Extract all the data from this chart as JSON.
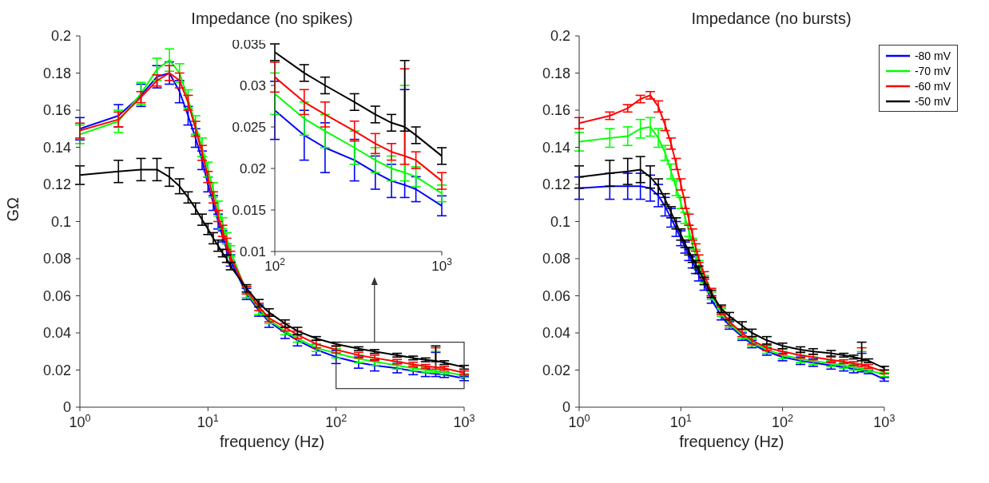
{
  "chart_data": [
    {
      "type": "line",
      "title": "Impedance (no spikes)",
      "xlabel": "frequency (Hz)",
      "ylabel": "GΩ",
      "log": "x",
      "marker": "none",
      "line_style": "solid",
      "xlim": [
        1,
        1000
      ],
      "xticks": [
        {
          "value": 1,
          "label": "10$^{0}$"
        },
        {
          "value": 10,
          "label": "10$^{1}$"
        },
        {
          "value": 100,
          "label": "10$^{2}$"
        },
        {
          "value": 1000,
          "label": "10$^{3}$"
        }
      ],
      "ylim": [
        0,
        0.2
      ],
      "yticks": [
        0,
        0.02,
        0.04,
        0.06,
        0.08,
        0.1,
        0.12,
        0.14,
        0.16,
        0.18,
        0.2
      ],
      "x": [
        1,
        2,
        3,
        4,
        5,
        6,
        7,
        8,
        9,
        10,
        11,
        12,
        13,
        14,
        15,
        20,
        25,
        30,
        40,
        50,
        70,
        100,
        150,
        200,
        300,
        400,
        500,
        600,
        700,
        1000
      ],
      "series": [
        {
          "color": "#0000ff",
          "values": [
            0.15,
            0.157,
            0.168,
            0.178,
            0.18,
            0.17,
            0.157,
            0.145,
            0.133,
            0.12,
            0.11,
            0.1,
            0.092,
            0.085,
            0.079,
            0.061,
            0.052,
            0.046,
            0.04,
            0.036,
            0.031,
            0.027,
            0.024,
            0.0225,
            0.021,
            0.0195,
            0.0185,
            0.018,
            0.0175,
            0.0155
          ],
          "errors": [
            0.006,
            0.006,
            0.006,
            0.006,
            0.006,
            0.006,
            0.005,
            0.005,
            0.005,
            0.004,
            0.004,
            0.004,
            0.003,
            0.003,
            0.003,
            0.003,
            0.003,
            0.003,
            0.003,
            0.003,
            0.003,
            0.0035,
            0.003,
            0.003,
            0.0025,
            0.002,
            0.002,
            [
              0.0165,
              0.0295
            ],
            0.0015,
            0.0012
          ]
        },
        {
          "color": "#00ff00",
          "values": [
            0.147,
            0.154,
            0.169,
            0.182,
            0.187,
            0.18,
            0.166,
            0.152,
            0.14,
            0.128,
            0.117,
            0.107,
            0.099,
            0.091,
            0.084,
            0.062,
            0.053,
            0.047,
            0.041,
            0.037,
            0.032,
            0.029,
            0.026,
            0.0245,
            0.0225,
            0.021,
            0.02,
            0.0195,
            0.019,
            0.017
          ],
          "errors": [
            0.005,
            0.006,
            0.006,
            0.006,
            0.006,
            0.005,
            0.005,
            0.005,
            0.005,
            0.004,
            0.004,
            0.004,
            0.003,
            0.003,
            0.003,
            0.003,
            0.003,
            0.002,
            0.002,
            0.002,
            0.002,
            0.0025,
            0.002,
            0.002,
            0.002,
            0.0015,
            0.0015,
            [
              0.0185,
              0.03
            ],
            0.0012,
            0.001
          ]
        },
        {
          "color": "#ff0000",
          "values": [
            0.149,
            0.155,
            0.167,
            0.176,
            0.18,
            0.176,
            0.164,
            0.15,
            0.137,
            0.124,
            0.113,
            0.103,
            0.095,
            0.088,
            0.081,
            0.063,
            0.054,
            0.048,
            0.043,
            0.039,
            0.034,
            0.031,
            0.028,
            0.0265,
            0.0245,
            0.023,
            0.022,
            0.0215,
            0.021,
            0.0185
          ],
          "errors": [
            0.004,
            0.004,
            0.003,
            0.003,
            0.004,
            0.004,
            0.004,
            0.004,
            0.004,
            0.003,
            0.003,
            0.003,
            0.003,
            0.003,
            0.003,
            0.002,
            0.002,
            0.002,
            0.002,
            0.002,
            0.002,
            0.0018,
            0.0015,
            0.0015,
            0.0012,
            0.0012,
            0.001,
            [
              0.0205,
              0.032
            ],
            0.001,
            0.001
          ]
        },
        {
          "color": "#000000",
          "values": [
            0.125,
            0.127,
            0.128,
            0.128,
            0.124,
            0.119,
            0.113,
            0.107,
            0.101,
            0.096,
            0.091,
            0.087,
            0.083,
            0.08,
            0.076,
            0.064,
            0.056,
            0.051,
            0.045,
            0.041,
            0.037,
            0.034,
            0.0315,
            0.03,
            0.028,
            0.0265,
            0.0255,
            0.025,
            0.024,
            0.0215
          ],
          "errors": [
            0.005,
            0.006,
            0.006,
            0.006,
            0.005,
            0.004,
            0.003,
            0.003,
            0.003,
            0.003,
            0.003,
            0.003,
            0.002,
            0.002,
            0.002,
            0.002,
            0.002,
            0.002,
            0.002,
            0.002,
            0.001,
            0.001,
            0.001,
            0.001,
            0.001,
            0.001,
            0.001,
            [
              0.0245,
              0.033
            ],
            0.001,
            0.001
          ]
        }
      ]
    },
    {
      "type": "line",
      "log": "x",
      "marker": "none",
      "line_style": "solid",
      "xlim": [
        100,
        1000
      ],
      "xticks": [
        {
          "value": 100,
          "label": "10$^{2}$"
        },
        {
          "value": 1000,
          "label": "10$^{3}$"
        }
      ],
      "ylim": [
        0.01,
        0.035
      ],
      "yticks": [
        0.01,
        0.015,
        0.02,
        0.025,
        0.03,
        0.035
      ],
      "x": [
        100,
        150,
        200,
        300,
        400,
        500,
        600,
        700,
        1000
      ],
      "series": [
        {
          "color": "#0000ff",
          "values": [
            0.027,
            0.024,
            0.0225,
            0.021,
            0.0195,
            0.0185,
            0.018,
            0.0175,
            0.0155
          ],
          "errors": [
            0.0035,
            0.003,
            0.003,
            0.0025,
            0.002,
            0.002,
            [
              0.0165,
              0.0295
            ],
            0.0015,
            0.0012
          ]
        },
        {
          "color": "#00ff00",
          "values": [
            0.029,
            0.026,
            0.0245,
            0.0225,
            0.021,
            0.02,
            0.0195,
            0.019,
            0.017
          ],
          "errors": [
            0.0025,
            0.002,
            0.002,
            0.002,
            0.0015,
            0.0015,
            [
              0.0185,
              0.03
            ],
            0.0012,
            0.001
          ]
        },
        {
          "color": "#ff0000",
          "values": [
            0.031,
            0.028,
            0.0265,
            0.0245,
            0.023,
            0.022,
            0.0215,
            0.021,
            0.0185
          ],
          "errors": [
            0.0018,
            0.0015,
            0.0015,
            0.0012,
            0.0012,
            0.001,
            [
              0.0205,
              0.032
            ],
            0.001,
            0.001
          ]
        },
        {
          "color": "#000000",
          "values": [
            0.034,
            0.0315,
            0.03,
            0.028,
            0.0265,
            0.0255,
            0.025,
            0.024,
            0.0215
          ],
          "errors": [
            0.001,
            0.001,
            0.001,
            0.001,
            0.001,
            0.001,
            [
              0.0245,
              0.033
            ],
            0.001,
            0.001
          ]
        }
      ]
    },
    {
      "type": "line",
      "title": "Impedance (no bursts)",
      "xlabel": "frequency (Hz)",
      "log": "x",
      "marker": "none",
      "line_style": "solid",
      "legend": "top right",
      "xlim": [
        1,
        1000
      ],
      "xticks": [
        {
          "value": 1,
          "label": "10$^{0}$"
        },
        {
          "value": 10,
          "label": "10$^{1}$"
        },
        {
          "value": 100,
          "label": "10$^{2}$"
        },
        {
          "value": 1000,
          "label": "10$^{3}$"
        }
      ],
      "ylim": [
        0,
        0.2
      ],
      "yticks": [
        0,
        0.02,
        0.04,
        0.06,
        0.08,
        0.1,
        0.12,
        0.14,
        0.16,
        0.18,
        0.2
      ],
      "x": [
        1,
        2,
        3,
        4,
        5,
        6,
        7,
        8,
        9,
        10,
        11,
        12,
        13,
        14,
        15,
        17,
        20,
        25,
        30,
        40,
        50,
        70,
        100,
        150,
        200,
        300,
        400,
        500,
        600,
        700,
        1000
      ],
      "series": [
        {
          "name": "-80 mV",
          "color": "#0000ff",
          "values": [
            0.118,
            0.119,
            0.119,
            0.119,
            0.118,
            0.114,
            0.108,
            0.102,
            0.096,
            0.091,
            0.086,
            0.082,
            0.078,
            0.075,
            0.071,
            0.066,
            0.058,
            0.049,
            0.044,
            0.038,
            0.034,
            0.03,
            0.027,
            0.025,
            0.024,
            0.0225,
            0.0215,
            0.0205,
            0.02,
            0.019,
            0.015
          ],
          "errors": [
            0.006,
            0.007,
            0.007,
            0.007,
            0.007,
            0.006,
            0.005,
            0.005,
            0.004,
            0.004,
            0.003,
            0.003,
            0.003,
            0.003,
            0.003,
            0.003,
            0.002,
            0.002,
            0.002,
            0.002,
            0.002,
            0.002,
            0.002,
            0.002,
            0.002,
            0.002,
            0.002,
            0.002,
            [
              0.019,
              0.029
            ],
            0.001,
            0.001
          ]
        },
        {
          "name": "-70 mV",
          "color": "#00ff00",
          "values": [
            0.143,
            0.145,
            0.146,
            0.15,
            0.151,
            0.145,
            0.137,
            0.127,
            0.118,
            0.11,
            0.102,
            0.095,
            0.088,
            0.082,
            0.077,
            0.069,
            0.06,
            0.051,
            0.045,
            0.039,
            0.035,
            0.031,
            0.028,
            0.026,
            0.025,
            0.0235,
            0.0225,
            0.0215,
            0.021,
            0.02,
            0.0175
          ],
          "errors": [
            0.005,
            0.005,
            0.005,
            0.005,
            0.005,
            0.005,
            0.004,
            0.004,
            0.004,
            0.003,
            0.003,
            0.003,
            0.003,
            0.003,
            0.002,
            0.002,
            0.002,
            0.002,
            0.002,
            0.002,
            0.002,
            0.002,
            0.002,
            0.002,
            0.002,
            0.0015,
            0.0015,
            0.0015,
            [
              0.02,
              0.03
            ],
            0.001,
            0.001
          ]
        },
        {
          "name": "-60 mV",
          "color": "#ff0000",
          "values": [
            0.153,
            0.157,
            0.161,
            0.166,
            0.168,
            0.162,
            0.152,
            0.142,
            0.131,
            0.12,
            0.11,
            0.101,
            0.093,
            0.086,
            0.08,
            0.071,
            0.062,
            0.052,
            0.046,
            0.04,
            0.036,
            0.032,
            0.03,
            0.028,
            0.027,
            0.0255,
            0.0245,
            0.0235,
            0.023,
            0.022,
            0.019
          ],
          "errors": [
            0.003,
            0.002,
            0.002,
            0.002,
            0.002,
            0.003,
            0.003,
            0.003,
            0.003,
            0.003,
            0.003,
            0.003,
            0.003,
            0.002,
            0.002,
            0.002,
            0.002,
            0.002,
            0.002,
            0.002,
            0.002,
            0.0015,
            0.0015,
            0.0015,
            0.0015,
            0.0015,
            0.001,
            0.001,
            [
              0.022,
              0.032
            ],
            0.001,
            0.001
          ]
        },
        {
          "name": "-50 mV",
          "color": "#000000",
          "values": [
            0.124,
            0.126,
            0.127,
            0.128,
            0.124,
            0.119,
            0.112,
            0.105,
            0.099,
            0.093,
            0.088,
            0.084,
            0.08,
            0.077,
            0.074,
            0.068,
            0.061,
            0.053,
            0.049,
            0.044,
            0.04,
            0.036,
            0.033,
            0.031,
            0.03,
            0.029,
            0.028,
            0.027,
            0.026,
            0.025,
            0.021
          ],
          "errors": [
            0.006,
            0.007,
            0.007,
            0.007,
            0.006,
            0.004,
            0.003,
            0.003,
            0.003,
            0.003,
            0.002,
            0.002,
            0.002,
            0.002,
            0.002,
            0.002,
            0.002,
            0.002,
            0.002,
            0.002,
            0.002,
            0.002,
            0.0015,
            0.0015,
            0.0015,
            0.0015,
            0.001,
            0.001,
            [
              0.025,
              0.035
            ],
            0.001,
            0.001
          ]
        }
      ]
    }
  ]
}
